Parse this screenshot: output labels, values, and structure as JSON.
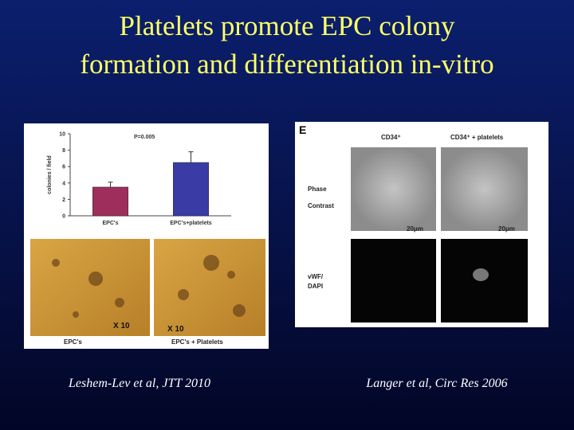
{
  "slide": {
    "title_lines": [
      "Platelets promote EPC colony",
      "formation and differentiation in-vitro"
    ],
    "left_caption": "Leshem-Lev et al, JTT 2010",
    "right_caption": "Langer et al, Circ Res 2006"
  },
  "micrographs": {
    "magnification_left": "X 10",
    "magnification_right": "X 10",
    "label_left": "EPC's",
    "label_right": "EPC's + Platelets"
  },
  "panel_e": {
    "letter": "E",
    "col1": "CD34⁺",
    "col2": "CD34⁺ + platelets",
    "row1": [
      "Phase",
      "Contrast"
    ],
    "row2": [
      "vWF/",
      "DAPI"
    ],
    "scale1": "20μm",
    "scale2": "20μm"
  },
  "chart_data": {
    "type": "bar",
    "y_label": "colonies / field",
    "annotation": "P=0.005",
    "categories": [
      "EPC's",
      "EPC's+platelets"
    ],
    "series": [
      {
        "name": null,
        "values": [
          3.5,
          6.5
        ],
        "errors": [
          0.6,
          1.3
        ],
        "colors": [
          "#9e2f5c",
          "#3b3ba6"
        ]
      }
    ],
    "ylim": [
      0,
      10
    ],
    "yticks": [
      0,
      2,
      4,
      6,
      8,
      10
    ]
  }
}
